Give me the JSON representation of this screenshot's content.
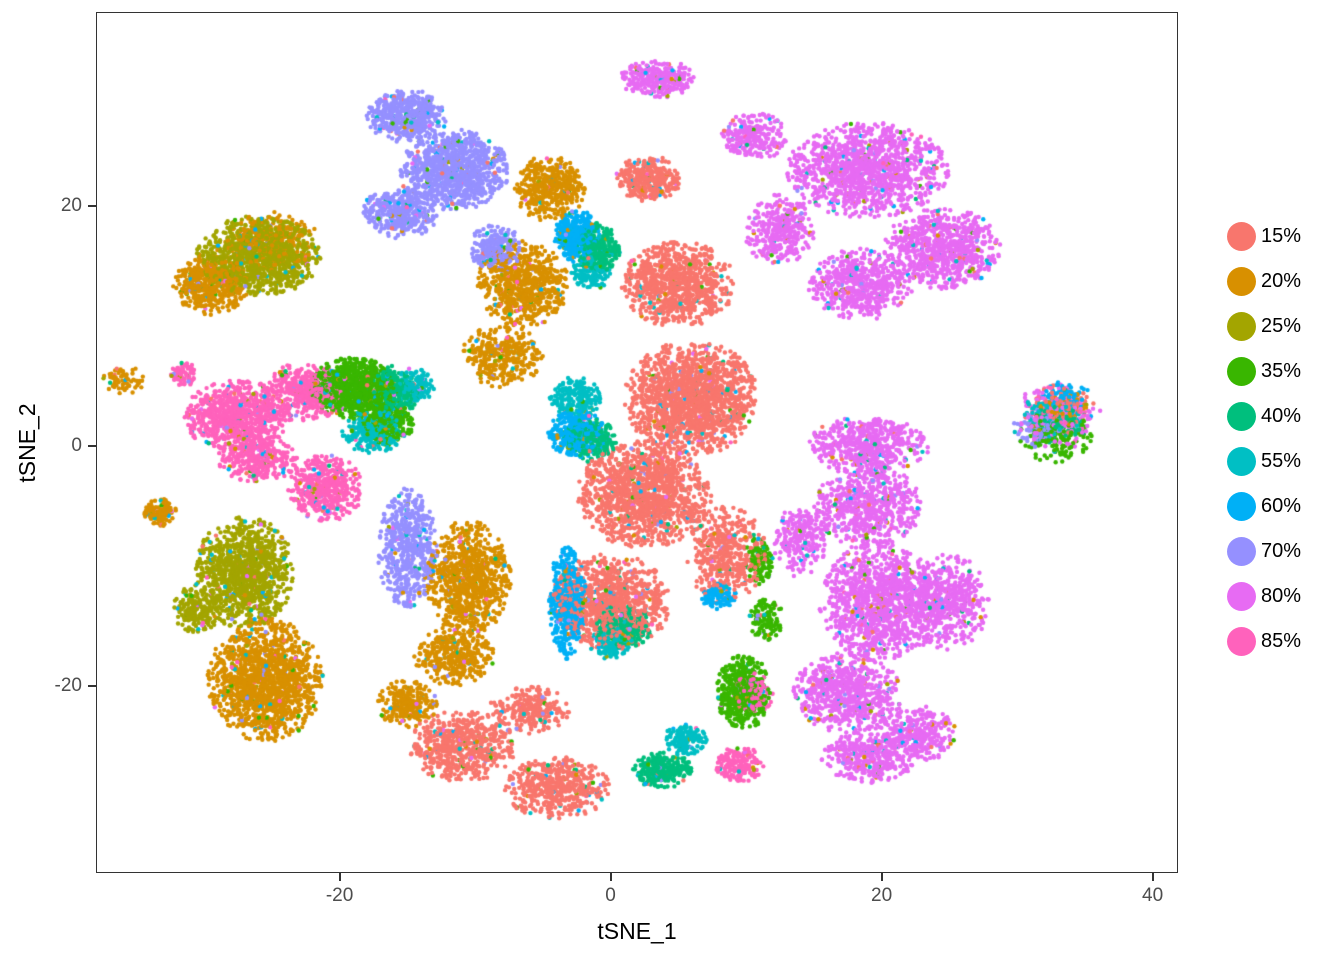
{
  "axes": {
    "x_ticks": [
      "-20",
      "0",
      "20",
      "40"
    ],
    "y_ticks": [
      "20",
      "0",
      "-20"
    ]
  },
  "chart_data": {
    "type": "scatter",
    "title": "",
    "xlabel": "tSNE_1",
    "ylabel": "tSNE_2",
    "xlim": [
      -37.9,
      41.8
    ],
    "ylim": [
      -35.5,
      36.1
    ],
    "x_tick_values": [
      -20,
      0,
      20,
      40
    ],
    "y_tick_values": [
      20,
      0,
      -20
    ],
    "grid": false,
    "legend_position": "right",
    "point_radius_px": 2.2,
    "panel_border_color": "#333333",
    "tick_label_color": "#4d4d4d",
    "cluster_format": [
      "center_x",
      "center_y",
      "radius_x",
      "radius_y",
      "n_points"
    ],
    "series": [
      {
        "name": "15%",
        "color": "#F8766D",
        "noise": 260,
        "clusters": [
          [
            2.8,
            22.3,
            2.4,
            1.9,
            320
          ],
          [
            5,
            13.5,
            4.2,
            3.6,
            850
          ],
          [
            6,
            4,
            5,
            4.8,
            1500
          ],
          [
            2.5,
            -4,
            5,
            4.5,
            1250
          ],
          [
            0,
            -13,
            4.5,
            4,
            900
          ],
          [
            8.5,
            -9,
            3,
            4,
            450
          ],
          [
            -11,
            -25,
            4,
            3,
            550
          ],
          [
            -4,
            -28.5,
            4,
            2.6,
            480
          ],
          [
            -6,
            -22,
            3,
            2,
            250
          ],
          [
            33.5,
            3.5,
            2.2,
            1.8,
            90
          ]
        ]
      },
      {
        "name": "20%",
        "color": "#D89000",
        "noise": 240,
        "clusters": [
          [
            -29.5,
            13.5,
            2.8,
            2.6,
            450
          ],
          [
            -25,
            17,
            3.5,
            2.6,
            250
          ],
          [
            -36,
            5.5,
            1.6,
            1.2,
            60
          ],
          [
            -33.2,
            -5.5,
            1.2,
            1.2,
            110
          ],
          [
            -25.5,
            -19.5,
            4.3,
            5.2,
            1350
          ],
          [
            -4.5,
            21.5,
            2.6,
            2.8,
            420
          ],
          [
            -6.5,
            13.5,
            3.4,
            3.6,
            650
          ],
          [
            -8,
            7.5,
            3,
            2.6,
            330
          ],
          [
            -10.5,
            -11,
            3.2,
            4.8,
            850
          ],
          [
            -11.5,
            -17.5,
            3,
            2.5,
            350
          ],
          [
            -15,
            -21.5,
            2.2,
            2,
            220
          ],
          [
            33.5,
            3,
            2.2,
            1.6,
            80
          ]
        ]
      },
      {
        "name": "25%",
        "color": "#A3A500",
        "noise": 170,
        "clusters": [
          [
            -26,
            15.8,
            4.6,
            3.4,
            1050
          ],
          [
            -27,
            -10.5,
            3.7,
            4.7,
            1050
          ],
          [
            -30.5,
            -13.5,
            1.8,
            2.2,
            200
          ]
        ]
      },
      {
        "name": "35%",
        "color": "#39B600",
        "noise": 230,
        "clusters": [
          [
            -19,
            4.8,
            3.2,
            2.6,
            900
          ],
          [
            -16.5,
            2,
            2,
            2,
            250
          ],
          [
            9.8,
            -20.5,
            2,
            3.2,
            480
          ],
          [
            11.5,
            -14.5,
            1.3,
            1.8,
            110
          ],
          [
            11,
            -9.5,
            1.1,
            2,
            100
          ],
          [
            33,
            0.8,
            2.8,
            2.2,
            150
          ]
        ]
      },
      {
        "name": "40%",
        "color": "#00BF7D",
        "noise": 130,
        "clusters": [
          [
            -16,
            4.5,
            1.8,
            2.2,
            300
          ],
          [
            -1,
            16.5,
            1.7,
            2.1,
            280
          ],
          [
            -1.5,
            0.5,
            2,
            1.8,
            240
          ],
          [
            1,
            -15,
            2.2,
            1.8,
            240
          ],
          [
            3.8,
            -27,
            2.2,
            1.5,
            260
          ],
          [
            33,
            2,
            2.4,
            1.8,
            100
          ]
        ]
      },
      {
        "name": "55%",
        "color": "#00BFC4",
        "noise": 280,
        "clusters": [
          [
            -17.5,
            1.2,
            2.4,
            1.8,
            280
          ],
          [
            -14.5,
            5,
            1.5,
            1.5,
            140
          ],
          [
            -2.5,
            4,
            2,
            1.8,
            200
          ],
          [
            -1.5,
            14.5,
            1.5,
            1.5,
            120
          ],
          [
            0,
            -16.5,
            1.6,
            1.4,
            140
          ],
          [
            5.5,
            -24.5,
            1.6,
            1.3,
            130
          ],
          [
            32.5,
            2.5,
            2.4,
            1.8,
            100
          ]
        ]
      },
      {
        "name": "60%",
        "color": "#00B0F6",
        "noise": 400,
        "clusters": [
          [
            -2.5,
            17.5,
            1.7,
            2.2,
            330
          ],
          [
            -2.5,
            1,
            2.2,
            2,
            360
          ],
          [
            -3.2,
            -13,
            1.4,
            4.8,
            430
          ],
          [
            8,
            -12.5,
            1.3,
            1.1,
            110
          ],
          [
            33.5,
            4,
            2,
            1.4,
            80
          ]
        ]
      },
      {
        "name": "70%",
        "color": "#9590FF",
        "noise": 190,
        "clusters": [
          [
            -15,
            27.5,
            3,
            2.2,
            480
          ],
          [
            -11.5,
            23,
            4,
            3.4,
            950
          ],
          [
            -15.5,
            19.5,
            2.8,
            2.2,
            380
          ],
          [
            -8.5,
            16.5,
            2,
            2,
            240
          ],
          [
            -15,
            -8.5,
            2.2,
            5,
            520
          ],
          [
            31.5,
            1.5,
            1.8,
            1.6,
            80
          ]
        ]
      },
      {
        "name": "80%",
        "color": "#E76BF3",
        "noise": 150,
        "clusters": [
          [
            12.5,
            18,
            2.6,
            3,
            330
          ],
          [
            19,
            23,
            6,
            4,
            1150
          ],
          [
            24.5,
            16.5,
            4.3,
            3.4,
            750
          ],
          [
            18.5,
            13.5,
            4,
            3,
            550
          ],
          [
            10.5,
            25.8,
            2.6,
            2,
            240
          ],
          [
            3.5,
            30.6,
            2.8,
            1.6,
            270
          ],
          [
            19,
            0,
            4.5,
            2.5,
            500
          ],
          [
            19,
            -5,
            4,
            3.6,
            600
          ],
          [
            20,
            -13,
            4.6,
            5,
            1150
          ],
          [
            25,
            -13,
            3,
            4,
            450
          ],
          [
            17.5,
            -20.5,
            4,
            3.4,
            650
          ],
          [
            22.5,
            -24,
            3,
            2.4,
            320
          ],
          [
            19,
            -26,
            3.5,
            2.2,
            350
          ],
          [
            14,
            -8,
            2,
            3,
            220
          ],
          [
            33,
            2.5,
            3.2,
            2.8,
            140
          ]
        ]
      },
      {
        "name": "85%",
        "color": "#FF62BC",
        "noise": 90,
        "clusters": [
          [
            -27.5,
            2.5,
            4,
            3,
            800
          ],
          [
            -22.5,
            4.5,
            3,
            2.5,
            400
          ],
          [
            -21,
            -3.5,
            2.8,
            2.8,
            450
          ],
          [
            -26,
            -1,
            3,
            2,
            300
          ],
          [
            -31.5,
            6,
            1,
            1,
            60
          ],
          [
            9.5,
            -26.5,
            1.8,
            1.5,
            150
          ],
          [
            10.5,
            -20.5,
            1.5,
            2,
            130
          ],
          [
            33,
            3.2,
            2.4,
            1.8,
            70
          ]
        ]
      }
    ]
  }
}
